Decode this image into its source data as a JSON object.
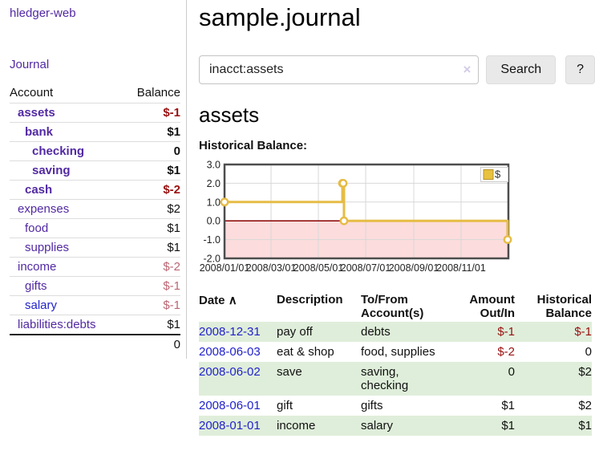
{
  "app": {
    "title": "hledger-web"
  },
  "sidebar": {
    "journal_link": "Journal",
    "accounts": {
      "account_header": "Account",
      "balance_header": "Balance",
      "rows": [
        {
          "name": "assets",
          "balance": "$-1",
          "indent": 0,
          "bold": true,
          "link_color": "purple",
          "balance_class": "neg"
        },
        {
          "name": "bank",
          "balance": "$1",
          "indent": 1,
          "bold": true,
          "link_color": "purple",
          "balance_class": ""
        },
        {
          "name": "checking",
          "balance": "0",
          "indent": 2,
          "bold": true,
          "link_color": "purple",
          "balance_class": ""
        },
        {
          "name": "saving",
          "balance": "$1",
          "indent": 2,
          "bold": true,
          "link_color": "purple",
          "balance_class": ""
        },
        {
          "name": "cash",
          "balance": "$-2",
          "indent": 1,
          "bold": true,
          "link_color": "purple",
          "balance_class": "neg"
        },
        {
          "name": "expenses",
          "balance": "$2",
          "indent": 0,
          "bold": false,
          "link_color": "purple",
          "balance_class": ""
        },
        {
          "name": "food",
          "balance": "$1",
          "indent": 1,
          "bold": false,
          "link_color": "purple",
          "balance_class": ""
        },
        {
          "name": "supplies",
          "balance": "$1",
          "indent": 1,
          "bold": false,
          "link_color": "purple",
          "balance_class": ""
        },
        {
          "name": "income",
          "balance": "$-2",
          "indent": 0,
          "bold": false,
          "link_color": "purple",
          "balance_class": "muted"
        },
        {
          "name": "gifts",
          "balance": "$-1",
          "indent": 1,
          "bold": false,
          "link_color": "purple",
          "balance_class": "muted"
        },
        {
          "name": "salary",
          "balance": "$-1",
          "indent": 1,
          "bold": false,
          "link_color": "blue",
          "balance_class": "muted"
        },
        {
          "name": "liabilities:debts",
          "balance": "$1",
          "indent": 0,
          "bold": false,
          "link_color": "purple",
          "balance_class": ""
        }
      ],
      "total": "0"
    }
  },
  "main": {
    "title": "sample.journal",
    "search": {
      "value": "inacct:assets",
      "clear_icon": "×",
      "button_label": "Search",
      "help_label": "?"
    },
    "account_heading": "assets"
  },
  "chart_data": {
    "type": "line",
    "step": true,
    "title": "Historical Balance:",
    "series": [
      {
        "name": "$",
        "color": "#e6bc45",
        "points": [
          {
            "date": "2008-01-01",
            "day": 0,
            "value": 1
          },
          {
            "date": "2008-06-01",
            "day": 152,
            "value": 2
          },
          {
            "date": "2008-06-02",
            "day": 153,
            "value": 2
          },
          {
            "date": "2008-06-03",
            "day": 154,
            "value": 0
          },
          {
            "date": "2008-12-31",
            "day": 365,
            "value": -1
          }
        ]
      }
    ],
    "x_ticks": [
      "2008/01/01",
      "2008/03/01",
      "2008/05/01",
      "2008/07/01",
      "2008/09/01",
      "2008/11/01"
    ],
    "x_tick_days": [
      0,
      60,
      121,
      182,
      244,
      305
    ],
    "xlim_days": [
      0,
      366
    ],
    "y_ticks": [
      3,
      2,
      1,
      0,
      -1,
      -2
    ],
    "ylim": [
      -2,
      3
    ],
    "grid": true,
    "legend": {
      "label": "$",
      "position": "top-right",
      "swatch_color": "#e8c23f"
    },
    "negative_region_color": "#fcdcdc",
    "zero_line_color": "#8b0000"
  },
  "register": {
    "headers": {
      "date": "Date",
      "description": "Description",
      "accounts": "To/From Account(s)",
      "amount": "Amount Out/In",
      "balance": "Historical Balance"
    },
    "sort_icon": "∧",
    "rows": [
      {
        "date": "2008-12-31",
        "description": "pay off",
        "accounts": "debts",
        "amount": "$-1",
        "amount_class": "neg",
        "balance": "$-1",
        "balance_class": "neg"
      },
      {
        "date": "2008-06-03",
        "description": "eat & shop",
        "accounts": "food, supplies",
        "amount": "$-2",
        "amount_class": "neg",
        "balance": "0",
        "balance_class": ""
      },
      {
        "date": "2008-06-02",
        "description": "save",
        "accounts": "saving, checking",
        "amount": "0",
        "amount_class": "",
        "balance": "$2",
        "balance_class": ""
      },
      {
        "date": "2008-06-01",
        "description": "gift",
        "accounts": "gifts",
        "amount": "$1",
        "amount_class": "",
        "balance": "$2",
        "balance_class": ""
      },
      {
        "date": "2008-01-01",
        "description": "income",
        "accounts": "salary",
        "amount": "$1",
        "amount_class": "",
        "balance": "$1",
        "balance_class": ""
      }
    ]
  },
  "colors": {
    "link_purple": "#5229a3",
    "link_blue": "#2222cc",
    "negative": "#991111",
    "negative_muted": "#bb6673",
    "row_stripe_green": "#dfeeda",
    "chart_line": "#e6bc45"
  }
}
